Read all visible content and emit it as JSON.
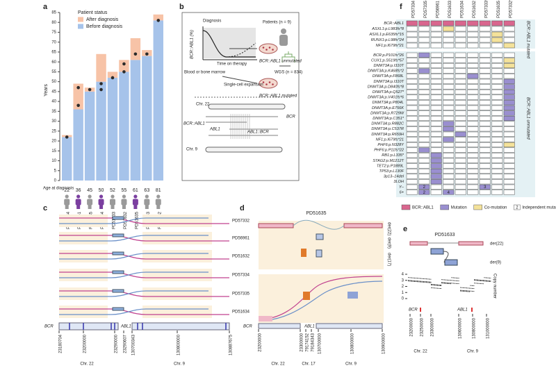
{
  "panel_labels": [
    "a",
    "b",
    "c",
    "d",
    "e",
    "f"
  ],
  "chart_data": {
    "type": "bar",
    "stacked": true,
    "ylabel": "Years",
    "legend_title": "Patient status",
    "categories": [
      "PD57334",
      "PD56961",
      "PD57335",
      "PD51634",
      "PD51633",
      "PD51632",
      "PD51635",
      "PD57333",
      "PD57332"
    ],
    "series": [
      {
        "name": "Before diagnosis",
        "color": "#a6c3ea",
        "values": [
          22,
          36,
          45,
          50,
          52,
          55,
          61,
          63,
          81
        ]
      },
      {
        "name": "After diagnosis",
        "color": "#f7c3a7",
        "values": [
          1,
          13,
          2,
          14,
          3,
          6,
          11,
          3,
          3
        ]
      }
    ],
    "samples": [
      [
        22
      ],
      [
        47,
        38
      ],
      [
        46
      ],
      [
        49,
        46
      ],
      [
        52
      ],
      [
        59,
        55
      ],
      [
        64
      ],
      [
        64
      ],
      [
        81
      ]
    ],
    "ylim": [
      0,
      85
    ],
    "yticks": [
      0,
      5,
      10,
      15,
      20,
      25,
      30,
      35,
      40,
      45,
      50,
      55,
      60,
      65,
      70,
      75,
      80,
      85
    ],
    "age_label": "Age at diagnosis",
    "ages": [
      22,
      36,
      45,
      50,
      52,
      55,
      61,
      63,
      81
    ]
  },
  "panel_b": {
    "texts": [
      "Diagnosis",
      "BCR::ABL1 (%)",
      "Time on therapy",
      "Blood or bone marrow",
      "Single-cell expansion",
      "BCR::ABL1 unmutated",
      "BCR::ABL1 mutated",
      "Patients (n = 9)",
      "WGS (n = 834)",
      "Chr. 22",
      "BCR",
      "BCR::ABL1",
      "ABL1",
      "ABL1::BCR",
      "Chr. 9"
    ]
  },
  "panel_c": {
    "samples": [
      "PD57332",
      "PD56961",
      "PD51632",
      "PD57334",
      "PD57335",
      "PD51634"
    ],
    "genes": [
      "BCR",
      "ABL1"
    ],
    "ticks": [
      "23180704",
      "23200000",
      "23290000",
      "23290607",
      "130700343",
      "130800000",
      "130887675"
    ],
    "chromosomes": [
      "Chr. 22",
      "Chr. 9"
    ]
  },
  "panel_d": {
    "title": "PD51635",
    "derivatives": [
      "der(22)",
      "der(9)",
      "der(17)"
    ],
    "genes": [
      "BCR",
      "ABL1"
    ],
    "ticks": [
      "23200000",
      "23300000",
      "79174152",
      "79184343",
      "130700000",
      "130800000",
      "130900000"
    ],
    "chromosomes": [
      "Chr. 22",
      "Chr. 17",
      "Chr. 9"
    ]
  },
  "panel_e": {
    "title": "PD51633",
    "derivatives": [
      "der(22)",
      "der(9)"
    ],
    "ylabel": "Copy number",
    "yticks": [
      0,
      1,
      2,
      3,
      4
    ],
    "ylim": [
      0,
      4
    ],
    "genes": [
      "BCR",
      "ABL1"
    ],
    "ticks": [
      "23200000",
      "23250000",
      "23300000",
      "130600000",
      "130800000",
      "131000000"
    ],
    "chromosomes": [
      "Chr. 22",
      "Chr. 9"
    ]
  },
  "mutation_grid": {
    "columns": [
      "PD57334",
      "PD57335",
      "PD56961",
      "PD51633",
      "PD51634",
      "PD51632",
      "PD57333*",
      "PD51635",
      "PD57332*"
    ],
    "groups": [
      "BCR::ABL1 mutated",
      "BCR::ABL1 unmutated"
    ],
    "group_rows": [
      5,
      27
    ],
    "rows": [
      "BCR::ABL1",
      "ASXL1:p.L983fs*8",
      "ASXL1:p.E635fs*15",
      "RUNX1:p.L98fs*24",
      "NF1:p.I679fs*21",
      "BCR:p.P101fs*26",
      "CUX1:p.S519fs*57",
      "DNMT3A:p.I310T",
      "DNMT3A:p.K468fs*2",
      "DNMT3A:p.F868L",
      "DNMT3A:p.I310T",
      "DNMT3A:p.D840fs*8",
      "DNMT3A:p.Q527*",
      "DNMT3A:p.V401fs*6",
      "DNMT3A:p.P804L",
      "DNMT3A:p.E756K",
      "DNMT3A:p.R729W",
      "DNMT3A:p.C351*",
      "DNMT3A:p.R882C",
      "DNMT3A:p.C537R",
      "DNMT3A:p.R659H",
      "NF1:p.I679fs*21",
      "PHF6:p.N328Y",
      "PHF6:p.P11fs*22",
      "RB1:p.L335*",
      "STAG2:p.M1212T",
      "TET2:p.P1889L",
      "TP53:p.L130F",
      "3p13–14del",
      "3LOH",
      "Y–",
      "6+"
    ],
    "legend": [
      {
        "name": "BCR::ABL1",
        "color": "#d9668e"
      },
      {
        "name": "Mutation",
        "color": "#9a8fd0"
      },
      {
        "name": "Co-mutation",
        "color": "#f4e29a"
      }
    ],
    "count_legend": {
      "label": "Independent mutations (n)",
      "sample": 2
    },
    "cells": [
      [
        1,
        1,
        1,
        1,
        1,
        1,
        1,
        1,
        1
      ],
      [
        0,
        0,
        0,
        3,
        0,
        0,
        0,
        0,
        0
      ],
      [
        0,
        0,
        0,
        0,
        0,
        0,
        0,
        3,
        0
      ],
      [
        0,
        0,
        0,
        0,
        0,
        0,
        0,
        3,
        0
      ],
      [
        0,
        0,
        0,
        0,
        0,
        0,
        0,
        0,
        3
      ],
      [
        0,
        2,
        0,
        0,
        0,
        0,
        0,
        0,
        0
      ],
      [
        0,
        0,
        0,
        0,
        0,
        0,
        0,
        0,
        3
      ],
      [
        0,
        0,
        0,
        0,
        0,
        0,
        0,
        0,
        3
      ],
      [
        0,
        2,
        0,
        0,
        0,
        0,
        0,
        0,
        0
      ],
      [
        0,
        0,
        0,
        0,
        0,
        2,
        0,
        0,
        0
      ],
      [
        0,
        0,
        0,
        0,
        0,
        0,
        0,
        0,
        2
      ],
      [
        0,
        0,
        0,
        0,
        0,
        0,
        0,
        0,
        2
      ],
      [
        0,
        0,
        0,
        0,
        0,
        0,
        0,
        0,
        2
      ],
      [
        0,
        0,
        0,
        0,
        0,
        0,
        0,
        0,
        2
      ],
      [
        0,
        0,
        0,
        0,
        0,
        0,
        0,
        0,
        2
      ],
      [
        0,
        0,
        0,
        0,
        0,
        0,
        0,
        0,
        2
      ],
      [
        0,
        0,
        0,
        0,
        0,
        0,
        0,
        0,
        2
      ],
      [
        0,
        0,
        0,
        0,
        0,
        0,
        0,
        0,
        2
      ],
      [
        0,
        0,
        0,
        2,
        0,
        0,
        0,
        0,
        0
      ],
      [
        0,
        0,
        0,
        2,
        0,
        0,
        0,
        0,
        0
      ],
      [
        0,
        0,
        0,
        0,
        2,
        0,
        0,
        0,
        0
      ],
      [
        0,
        0,
        0,
        2,
        0,
        0,
        0,
        0,
        0
      ],
      [
        0,
        0,
        0,
        0,
        0,
        0,
        0,
        0,
        3
      ],
      [
        0,
        2,
        0,
        0,
        0,
        0,
        0,
        0,
        0
      ],
      [
        0,
        0,
        2,
        0,
        0,
        0,
        0,
        0,
        0
      ],
      [
        0,
        0,
        2,
        0,
        0,
        0,
        0,
        0,
        0
      ],
      [
        0,
        0,
        2,
        0,
        0,
        0,
        0,
        0,
        0
      ],
      [
        0,
        0,
        2,
        0,
        0,
        0,
        0,
        0,
        0
      ],
      [
        0,
        0,
        2,
        0,
        0,
        0,
        0,
        0,
        0
      ],
      [
        0,
        0,
        2,
        0,
        0,
        0,
        0,
        0,
        0
      ],
      [
        0,
        2,
        0,
        0,
        0,
        0,
        2,
        0,
        0
      ],
      [
        0,
        2,
        0,
        2,
        0,
        0,
        0,
        0,
        0
      ]
    ],
    "counts": [
      [
        null,
        null,
        null,
        null,
        null,
        null,
        null,
        null,
        null
      ],
      [
        null,
        null,
        null,
        null,
        null,
        null,
        null,
        null,
        null
      ],
      [
        null,
        null,
        null,
        null,
        null,
        null,
        null,
        null,
        null
      ],
      [
        null,
        null,
        null,
        null,
        null,
        null,
        null,
        null,
        null
      ],
      [
        null,
        null,
        null,
        null,
        null,
        null,
        null,
        null,
        null
      ],
      [
        null,
        null,
        null,
        null,
        null,
        null,
        null,
        null,
        null
      ],
      [
        null,
        null,
        null,
        null,
        null,
        null,
        null,
        null,
        null
      ],
      [
        null,
        null,
        null,
        null,
        null,
        null,
        null,
        null,
        null
      ],
      [
        null,
        null,
        null,
        null,
        null,
        null,
        null,
        null,
        null
      ],
      [
        null,
        null,
        null,
        null,
        null,
        null,
        null,
        null,
        null
      ],
      [
        null,
        null,
        null,
        null,
        null,
        null,
        null,
        null,
        null
      ],
      [
        null,
        null,
        null,
        null,
        null,
        null,
        null,
        null,
        null
      ],
      [
        null,
        null,
        null,
        null,
        null,
        null,
        null,
        null,
        null
      ],
      [
        null,
        null,
        null,
        null,
        null,
        null,
        null,
        null,
        null
      ],
      [
        null,
        null,
        null,
        null,
        null,
        null,
        null,
        null,
        null
      ],
      [
        null,
        null,
        null,
        null,
        null,
        null,
        null,
        null,
        null
      ],
      [
        null,
        null,
        null,
        null,
        null,
        null,
        null,
        null,
        null
      ],
      [
        null,
        null,
        null,
        null,
        null,
        null,
        null,
        null,
        null
      ],
      [
        null,
        null,
        null,
        null,
        null,
        null,
        null,
        null,
        null
      ],
      [
        null,
        null,
        null,
        null,
        null,
        null,
        null,
        null,
        null
      ],
      [
        null,
        null,
        null,
        null,
        null,
        null,
        null,
        null,
        null
      ],
      [
        null,
        null,
        null,
        null,
        null,
        null,
        null,
        null,
        null
      ],
      [
        null,
        null,
        null,
        null,
        null,
        null,
        null,
        null,
        null
      ],
      [
        null,
        null,
        null,
        null,
        null,
        null,
        null,
        null,
        null
      ],
      [
        null,
        null,
        null,
        null,
        null,
        null,
        null,
        null,
        null
      ],
      [
        null,
        null,
        null,
        null,
        null,
        null,
        null,
        null,
        null
      ],
      [
        null,
        null,
        null,
        null,
        null,
        null,
        null,
        null,
        null
      ],
      [
        null,
        null,
        null,
        null,
        null,
        null,
        null,
        null,
        null
      ],
      [
        null,
        null,
        null,
        null,
        null,
        null,
        null,
        null,
        null
      ],
      [
        null,
        null,
        null,
        null,
        null,
        null,
        null,
        null,
        null
      ],
      [
        null,
        2,
        null,
        null,
        null,
        null,
        3,
        null,
        null
      ],
      [
        null,
        2,
        null,
        4,
        null,
        null,
        null,
        null,
        null
      ]
    ]
  }
}
